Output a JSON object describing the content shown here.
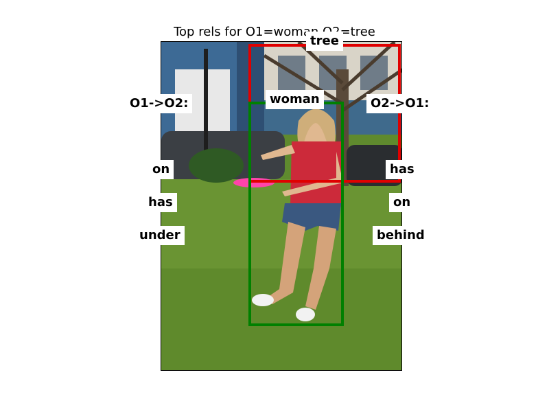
{
  "title": "Top rels for O1=woman,O2=tree",
  "objects": {
    "o1": {
      "label": "woman",
      "color": "#008000"
    },
    "o2": {
      "label": "tree",
      "color": "#e00000"
    }
  },
  "columns": {
    "left_header": "O1->O2:",
    "right_header": "O2->O1:"
  },
  "relations": {
    "o1_to_o2": [
      "on",
      "has",
      "under"
    ],
    "o2_to_o1": [
      "has",
      "on",
      "behind"
    ]
  }
}
